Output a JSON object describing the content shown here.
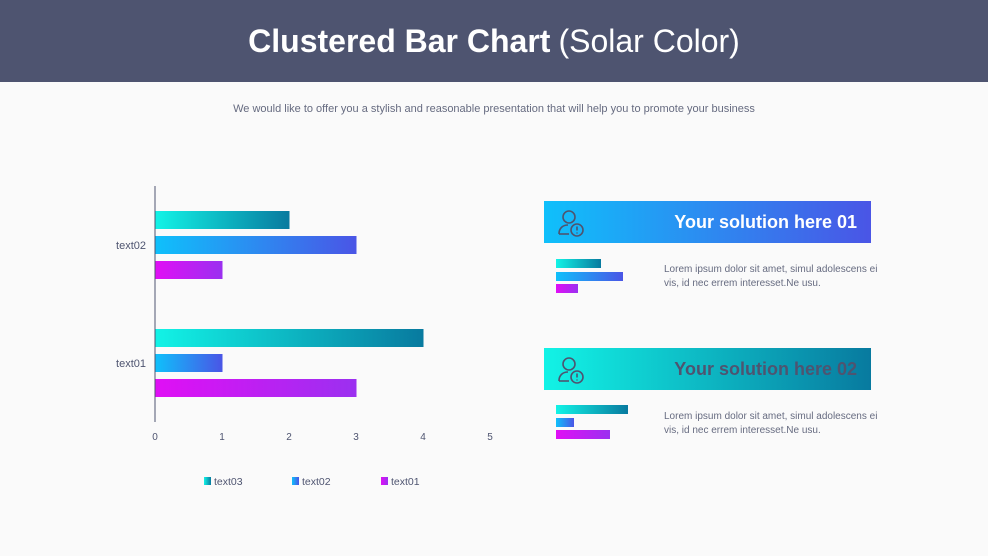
{
  "header": {
    "title_bold": "Clustered Bar Chart",
    "title_light": "(Solar Color)"
  },
  "subtitle": "We would like to offer you a stylish and reasonable presentation that will help you to promote your business",
  "chart_data": {
    "type": "bar",
    "orientation": "horizontal",
    "categories": [
      "text01",
      "text02"
    ],
    "series": [
      {
        "name": "text03",
        "values": [
          4,
          2
        ],
        "gradient": [
          "#12f3e6",
          "#087a9f"
        ]
      },
      {
        "name": "text02",
        "values": [
          1,
          3
        ],
        "gradient": [
          "#0fc0fb",
          "#4a55e6"
        ]
      },
      {
        "name": "text01",
        "values": [
          3,
          1
        ],
        "gradient": [
          "#e00ff5",
          "#9b30f0"
        ]
      }
    ],
    "xticks": [
      0,
      1,
      2,
      3,
      4,
      5
    ],
    "xlim": [
      0,
      5
    ],
    "grid": false,
    "legend": "bottom"
  },
  "cards": [
    {
      "title": "Your solution here 01",
      "text": "Lorem ipsum dolor sit amet, simul adolescens ei vis, id nec errem interesset.Ne usu.",
      "icon": "user-alert-icon",
      "mini": [
        2,
        3,
        1
      ]
    },
    {
      "title": "Your solution here 02",
      "text": "Lorem ipsum dolor sit amet, simul adolescens ei vis, id nec errem interesset.Ne usu.",
      "icon": "user-alert-icon",
      "mini": [
        4,
        1,
        3
      ]
    }
  ]
}
